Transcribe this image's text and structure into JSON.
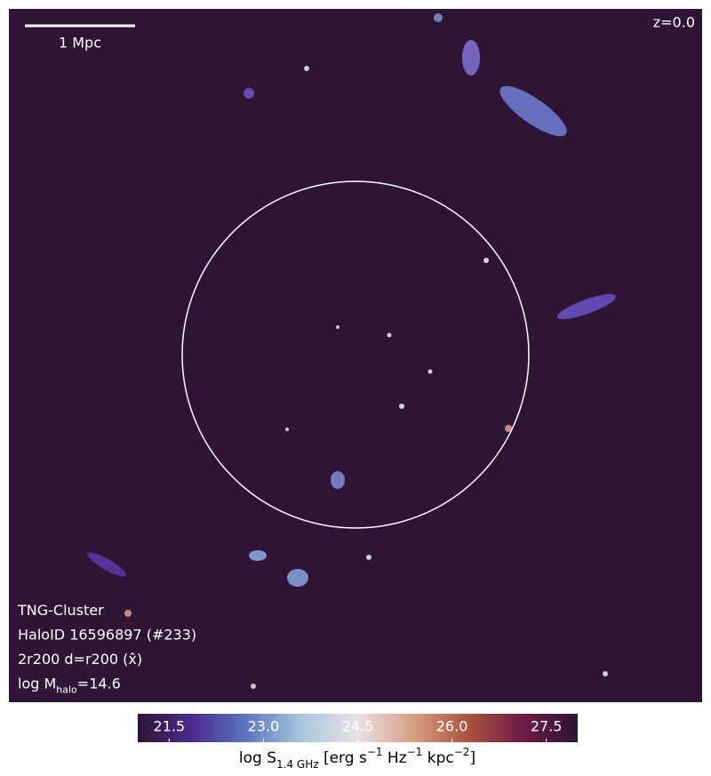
{
  "scale_bar": "1 Mpc",
  "redshift": "z=0.0",
  "info": [
    [
      {
        "text": "TNG-Cluster"
      }
    ],
    [
      {
        "text": "HaloID 16596897 (#233)"
      }
    ],
    [
      {
        "text": "2r200 d=r200 (x̂)"
      }
    ],
    [
      {
        "text": "log M"
      },
      {
        "text": "halo",
        "shift": "sub"
      },
      {
        "text": "=14.6"
      }
    ]
  ],
  "colorbar": {
    "clim": [
      21,
      28
    ],
    "ticks": [
      21.5,
      {
        "value": 23,
        "label": "23.0"
      },
      24.5,
      {
        "value": 26,
        "label": "26.0"
      },
      27.5
    ],
    "colormap": [
      "#2f1436",
      "#4b2c8e",
      "#5d78c2",
      "#a9c8dc",
      "#ebe1e4",
      "#d7a083",
      "#ad523f",
      "#6c1c46",
      "#2f1436"
    ],
    "label": [
      {
        "text": "log S"
      },
      {
        "text": "1.4 GHz",
        "shift": "sub"
      },
      {
        "text": " [erg s"
      },
      {
        "text": "−1",
        "shift": "super"
      },
      {
        "text": " Hz"
      },
      {
        "text": "−1",
        "shift": "super"
      },
      {
        "text": " kpc"
      },
      {
        "text": "−2",
        "shift": "super"
      },
      {
        "text": "]"
      }
    ]
  }
}
